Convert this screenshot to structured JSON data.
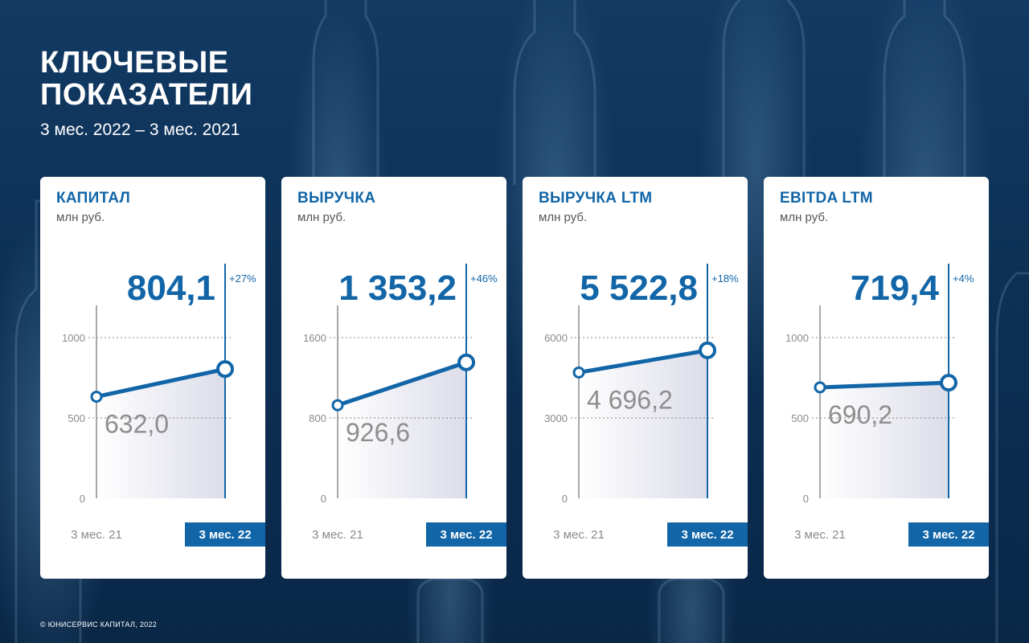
{
  "title_line1": "КЛЮЧЕВЫЕ",
  "title_line2": "ПОКАЗАТЕЛИ",
  "subtitle": "3 мес. 2022 – 3 мес. 2021",
  "copyright": "© ЮНИСЕРВИС КАПИТАЛ, 2022",
  "colors": {
    "accent": "#1266a8",
    "background": "#0b2a4a",
    "card": "#ffffff",
    "muted": "#8a8a8a"
  },
  "chart_data": [
    {
      "type": "area",
      "title": "КАПИТАЛ",
      "unit": "млн руб.",
      "categories": [
        "3 мес. 21",
        "3 мес. 22"
      ],
      "values": [
        632.0,
        804.1
      ],
      "value_labels": [
        "632,0",
        "804,1"
      ],
      "change": "+27%",
      "yticks": [
        0,
        500,
        1000
      ],
      "ytick_labels": [
        "0",
        "500",
        "1000"
      ],
      "ylim": [
        0,
        1100
      ]
    },
    {
      "type": "area",
      "title": "ВЫРУЧКА",
      "unit": "млн руб.",
      "categories": [
        "3 мес. 21",
        "3 мес. 22"
      ],
      "values": [
        926.6,
        1353.2
      ],
      "value_labels": [
        "926,6",
        "1 353,2"
      ],
      "change": "+46%",
      "yticks": [
        0,
        800,
        1600
      ],
      "ytick_labels": [
        "0",
        "800",
        "1600"
      ],
      "ylim": [
        0,
        1760
      ]
    },
    {
      "type": "area",
      "title": "ВЫРУЧКА LTM",
      "unit": "млн руб.",
      "categories": [
        "3 мес. 21",
        "3 мес. 22"
      ],
      "values": [
        4696.2,
        5522.8
      ],
      "value_labels": [
        "4 696,2",
        "5 522,8"
      ],
      "change": "+18%",
      "yticks": [
        0,
        3000,
        6000
      ],
      "ytick_labels": [
        "0",
        "3000",
        "6000"
      ],
      "ylim": [
        0,
        6600
      ]
    },
    {
      "type": "area",
      "title": "EBITDA LTM",
      "unit": "млн руб.",
      "categories": [
        "3 мес. 21",
        "3 мес. 22"
      ],
      "values": [
        690.2,
        719.4
      ],
      "value_labels": [
        "690,2",
        "719,4"
      ],
      "change": "+4%",
      "yticks": [
        0,
        500,
        1000
      ],
      "ytick_labels": [
        "0",
        "500",
        "1000"
      ],
      "ylim": [
        0,
        1100
      ]
    }
  ]
}
